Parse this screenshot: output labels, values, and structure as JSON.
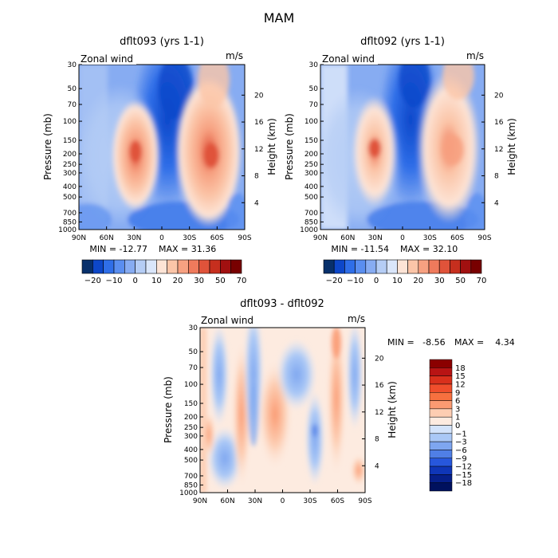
{
  "figure": {
    "title": "MAM"
  },
  "chart_data": [
    {
      "type": "heatmap",
      "title": "dflt093 (yrs 1-1)",
      "field_label": "Zonal wind",
      "units": "m/s",
      "ylabel": "Pressure (mb)",
      "y2label": "Height (km)",
      "x_ticks": [
        "90N",
        "60N",
        "30N",
        "0",
        "30S",
        "60S",
        "90S"
      ],
      "y_ticks": [
        "30",
        "50",
        "70",
        "100",
        "150",
        "200",
        "250",
        "300",
        "400",
        "500",
        "700",
        "850",
        "1000"
      ],
      "y2_ticks": [
        "20",
        "16",
        "12",
        "8",
        "4"
      ],
      "min_label": "MIN = -12.77",
      "max_label": "MAX = 31.36",
      "stats": {
        "min": -12.77,
        "max": 31.36
      },
      "colorbar": {
        "orientation": "horizontal",
        "levels": [
          -20,
          -10,
          0,
          10,
          20,
          30,
          50,
          70
        ],
        "labels": [
          "-20",
          "-10",
          "0",
          "10",
          "20",
          "30",
          "50",
          "70"
        ],
        "colors": [
          "#08306b",
          "#0d47c9",
          "#2f6ee8",
          "#5a8ef0",
          "#87acf2",
          "#b5cdf5",
          "#dae6fa",
          "#fde4d6",
          "#fbc5a8",
          "#f7a181",
          "#ef7a5c",
          "#e0533a",
          "#c62f1e",
          "#a11010",
          "#780000"
        ]
      }
    },
    {
      "type": "heatmap",
      "title": "dflt092 (yrs 1-1)",
      "field_label": "Zonal wind",
      "units": "m/s",
      "ylabel": "Pressure (mb)",
      "y2label": "Height (km)",
      "x_ticks": [
        "90N",
        "60N",
        "30N",
        "0",
        "30S",
        "60S",
        "90S"
      ],
      "y_ticks": [
        "30",
        "50",
        "70",
        "100",
        "150",
        "200",
        "250",
        "300",
        "400",
        "500",
        "700",
        "850",
        "1000"
      ],
      "y2_ticks": [
        "20",
        "16",
        "12",
        "8",
        "4"
      ],
      "min_label": "MIN = -11.54",
      "max_label": "MAX = 32.10",
      "stats": {
        "min": -11.54,
        "max": 32.1
      },
      "colorbar": {
        "orientation": "horizontal",
        "levels": [
          -20,
          -10,
          0,
          10,
          20,
          30,
          50,
          70
        ],
        "labels": [
          "-20",
          "-10",
          "0",
          "10",
          "20",
          "30",
          "50",
          "70"
        ],
        "colors": [
          "#08306b",
          "#0d47c9",
          "#2f6ee8",
          "#5a8ef0",
          "#87acf2",
          "#b5cdf5",
          "#dae6fa",
          "#fde4d6",
          "#fbc5a8",
          "#f7a181",
          "#ef7a5c",
          "#e0533a",
          "#c62f1e",
          "#a11010",
          "#780000"
        ]
      }
    },
    {
      "type": "heatmap",
      "title": "dflt093 - dflt092",
      "field_label": "Zonal wind",
      "units": "m/s",
      "ylabel": "Pressure (mb)",
      "y2label": "Height (km)",
      "x_ticks": [
        "90N",
        "60N",
        "30N",
        "0",
        "30S",
        "60S",
        "90S"
      ],
      "y_ticks": [
        "30",
        "50",
        "70",
        "100",
        "150",
        "200",
        "250",
        "300",
        "400",
        "500",
        "700",
        "850",
        "1000"
      ],
      "y2_ticks": [
        "20",
        "16",
        "12",
        "8",
        "4"
      ],
      "min_label": "MIN =   -8.56",
      "max_label": "MAX =    4.34",
      "stats": {
        "min": -8.56,
        "max": 4.34
      },
      "colorbar": {
        "orientation": "vertical",
        "levels": [
          18,
          15,
          12,
          9,
          6,
          3,
          1,
          0,
          -1,
          -3,
          -6,
          -9,
          -12,
          -15,
          -18
        ],
        "labels": [
          "18",
          "15",
          "12",
          "9",
          "6",
          "3",
          "1",
          "0",
          "−1",
          "−3",
          "−6",
          "−9",
          "−12",
          "−15",
          "−18"
        ],
        "colors": [
          "#8b0000",
          "#b81414",
          "#d9301c",
          "#f04e2c",
          "#f7703f",
          "#fb9a72",
          "#fdcdb2",
          "#fdebe0",
          "#d3e3fb",
          "#aac8f6",
          "#7ea6f0",
          "#507fe6",
          "#2757dc",
          "#0f36b8",
          "#061f8a",
          "#00115e"
        ]
      }
    }
  ]
}
